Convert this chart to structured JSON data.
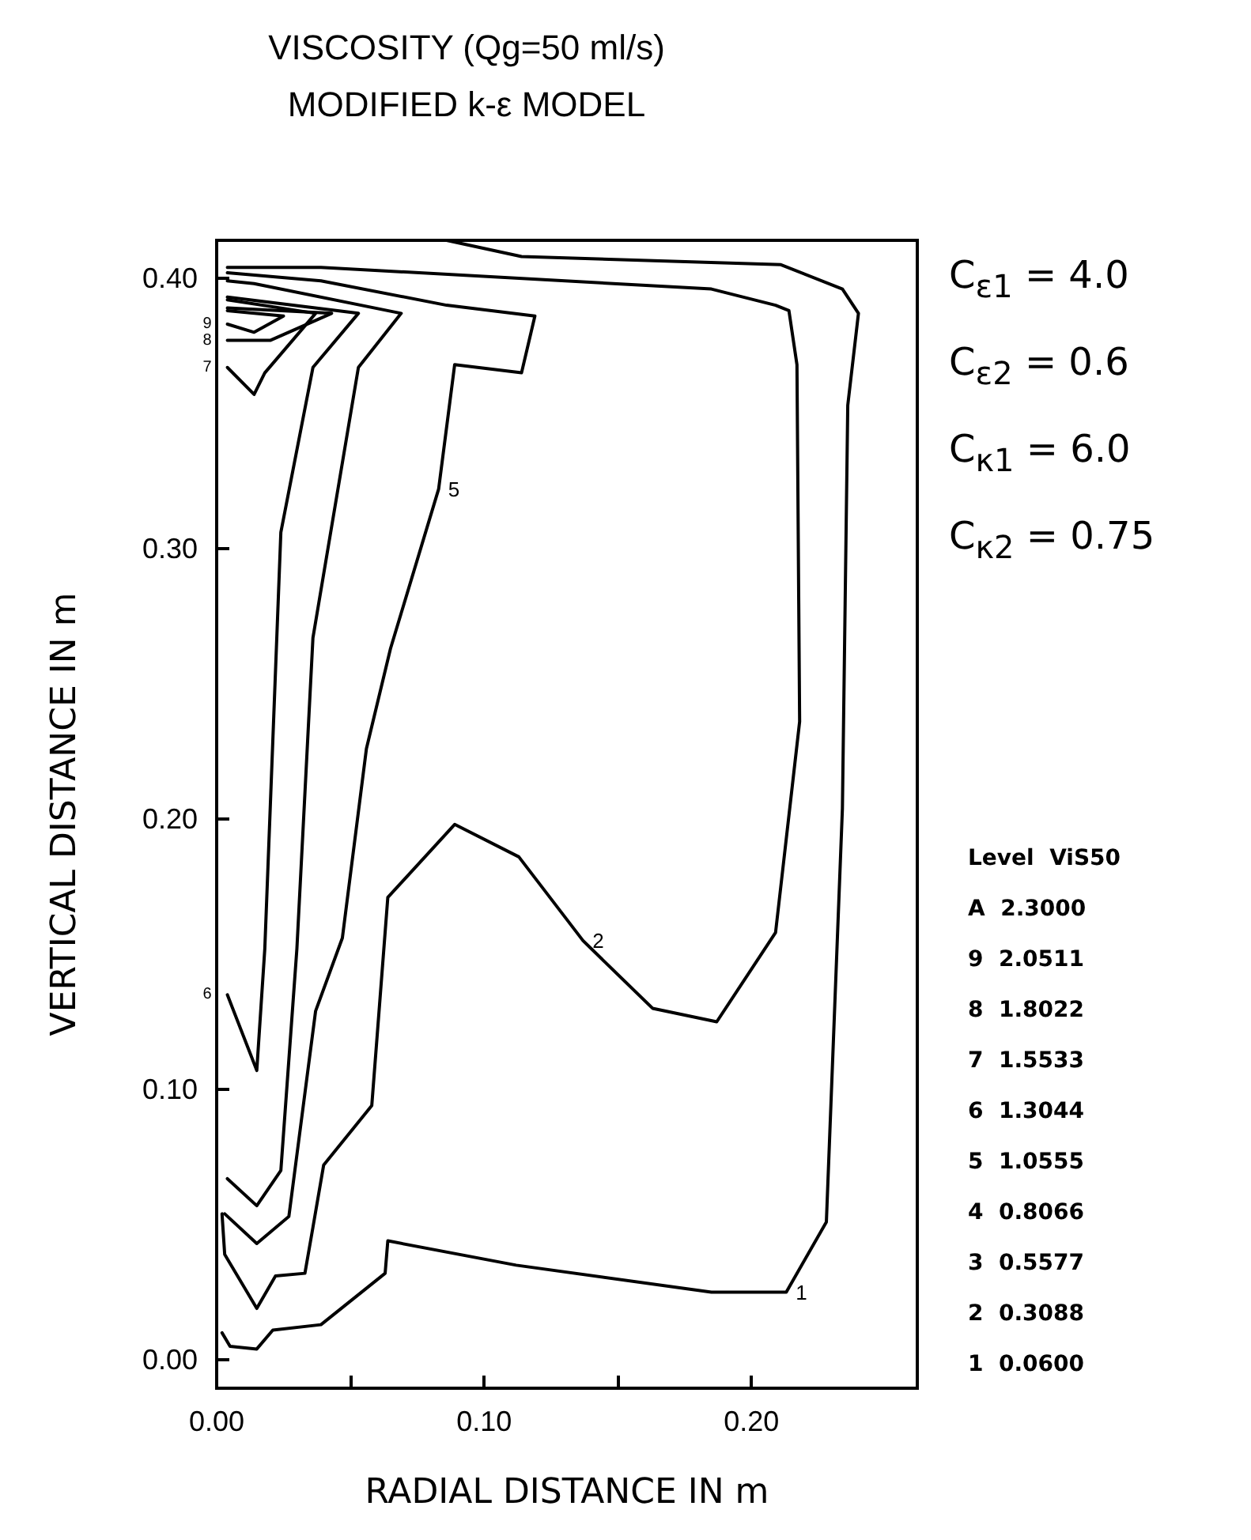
{
  "chart_data": {
    "type": "line",
    "title": "VISCOSITY (Qg=50 ml/s)",
    "subtitle": "MODIFIED k-ε MODEL",
    "xlabel": "RADIAL DISTANCE IN m",
    "ylabel": "VERTICAL DISTANCE IN m",
    "xlim": [
      0,
      0.262
    ],
    "ylim": [
      -0.0105,
      0.414
    ],
    "xticks": [
      {
        "value": 0,
        "label": "0.00"
      },
      {
        "value": 0.05,
        "label": null
      },
      {
        "value": 0.1,
        "label": "0.10"
      },
      {
        "value": 0.15,
        "label": null
      },
      {
        "value": 0.2,
        "label": "0.20"
      }
    ],
    "yticks": [
      {
        "value": 0,
        "label": "0.00"
      },
      {
        "value": 0.1,
        "label": "0.10"
      },
      {
        "value": 0.2,
        "label": "0.20"
      },
      {
        "value": 0.3,
        "label": "0.30"
      },
      {
        "value": 0.4,
        "label": "0.40"
      }
    ],
    "grid": false,
    "marker": "none",
    "line_style": "solid",
    "series": [
      {
        "name": "1",
        "color": "#000000",
        "x": [
          0.002,
          0.005,
          0.015,
          0.021,
          0.039,
          0.063,
          0.064,
          0.112,
          0.185,
          0.213,
          0.228,
          0.234,
          0.236,
          0.24,
          0.234,
          0.211,
          0.114,
          0.086
        ],
        "values": [
          0.01,
          0.005,
          0.004,
          0.011,
          0.013,
          0.032,
          0.044,
          0.035,
          0.025,
          0.025,
          0.051,
          0.204,
          0.353,
          0.387,
          0.396,
          0.405,
          0.408,
          0.414
        ]
      },
      {
        "name": "2",
        "color": "#000000",
        "x": [
          0.002,
          0.003,
          0.015,
          0.022,
          0.033,
          0.036,
          0.04,
          0.058,
          0.064,
          0.089,
          0.113,
          0.137,
          0.163,
          0.187,
          0.209,
          0.218,
          0.217,
          0.214,
          0.209,
          0.185,
          0.039,
          0.004
        ],
        "values": [
          0.054,
          0.039,
          0.019,
          0.031,
          0.032,
          0.049,
          0.072,
          0.094,
          0.171,
          0.198,
          0.186,
          0.155,
          0.13,
          0.125,
          0.158,
          0.236,
          0.368,
          0.388,
          0.39,
          0.396,
          0.404,
          0.404
        ]
      },
      {
        "name": "5",
        "color": "#000000",
        "x": [
          0.003,
          0.015,
          0.027,
          0.037,
          0.047,
          0.056,
          0.065,
          0.083,
          0.089,
          0.114,
          0.119,
          0.086,
          0.039,
          0.004
        ],
        "values": [
          0.054,
          0.043,
          0.053,
          0.129,
          0.156,
          0.226,
          0.263,
          0.322,
          0.368,
          0.365,
          0.386,
          0.39,
          0.399,
          0.402
        ]
      },
      {
        "color": "#000000",
        "x": [
          0.004,
          0.015,
          0.024,
          0.03,
          0.036,
          0.053,
          0.069,
          0.014,
          0.004
        ],
        "values": [
          0.067,
          0.057,
          0.07,
          0.152,
          0.267,
          0.367,
          0.387,
          0.398,
          0.399
        ]
      },
      {
        "name": "6",
        "color": "#000000",
        "x": [
          0.004,
          0.015,
          0.018,
          0.024,
          0.036,
          0.053,
          0.004
        ],
        "values": [
          0.135,
          0.107,
          0.152,
          0.306,
          0.367,
          0.387,
          0.393
        ]
      },
      {
        "name": "7",
        "color": "#000000",
        "x": [
          0.004,
          0.014,
          0.018,
          0.037,
          0.004
        ],
        "values": [
          0.367,
          0.357,
          0.365,
          0.387,
          0.392
        ]
      },
      {
        "name": "8",
        "color": "#000000",
        "x": [
          0.004,
          0.02,
          0.043,
          0.004
        ],
        "values": [
          0.377,
          0.377,
          0.387,
          0.389
        ]
      },
      {
        "name": "9",
        "color": "#000000",
        "x": [
          0.004,
          0.014,
          0.025,
          0.004
        ],
        "values": [
          0.383,
          0.38,
          0.386,
          0.388
        ]
      }
    ],
    "annotations": [
      "C$_{ε1}$ = 4.0",
      "C$_{ε2}$ = 0.6",
      "C$_{κ1}$ = 6.0",
      "C$_{κ2}$ = 0.75",
      "Level  ViS50",
      "A  2.3000",
      "9  2.0511",
      "8  1.8022",
      "7  1.5533",
      "6  1.3044",
      "5  1.0555",
      "4  0.8066",
      "3  0.5577",
      "2  0.3088",
      "1  0.0600"
    ]
  }
}
